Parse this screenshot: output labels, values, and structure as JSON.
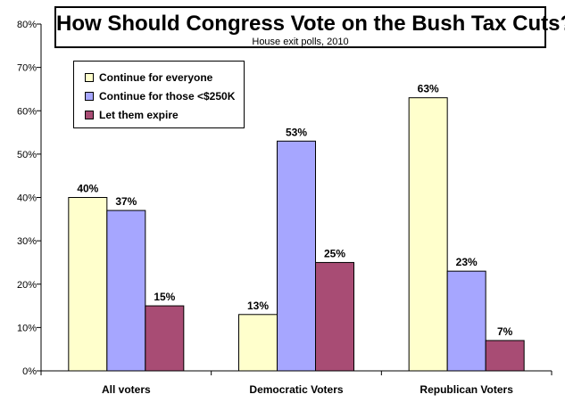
{
  "chart_data": {
    "type": "bar",
    "title": "How Should Congress Vote on the Bush Tax Cuts?",
    "subtitle": "House exit polls, 2010",
    "categories": [
      "All voters",
      "Democratic Voters",
      "Republican Voters"
    ],
    "series": [
      {
        "name": "Continue for everyone",
        "color": "#ffffcc",
        "values": [
          40,
          13,
          63
        ],
        "labels": [
          "40%",
          "13%",
          "63%"
        ]
      },
      {
        "name": "Continue for those <$250K",
        "color": "#a6a6ff",
        "values": [
          37,
          53,
          23
        ],
        "labels": [
          "37%",
          "53%",
          "23%"
        ]
      },
      {
        "name": "Let them expire",
        "color": "#a84c74",
        "values": [
          15,
          25,
          7
        ],
        "labels": [
          "15%",
          "25%",
          "7%"
        ]
      }
    ],
    "ylim": [
      0,
      80
    ],
    "yticks": [
      "0%",
      "10%",
      "20%",
      "30%",
      "40%",
      "50%",
      "60%",
      "70%",
      "80%"
    ],
    "grid": false,
    "legend_position": "top-left"
  }
}
